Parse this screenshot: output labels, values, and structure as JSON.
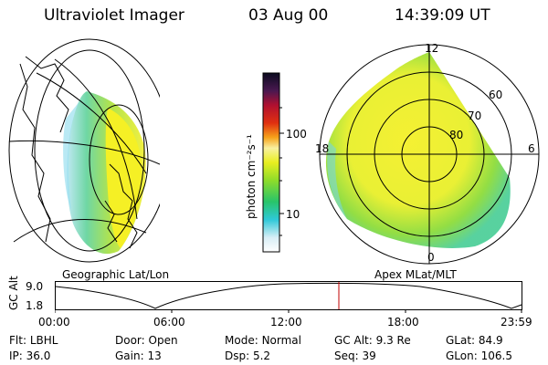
{
  "header": {
    "instrument": "Ultraviolet Imager",
    "date": "03 Aug 00",
    "time": "14:39:09 UT"
  },
  "colorbar": {
    "unit_label": "photon cm⁻²s⁻¹",
    "ticks": [
      "100",
      "10"
    ]
  },
  "map_labels": {
    "geo": "Geographic Lat/Lon",
    "apex": "Apex MLat/MLT"
  },
  "polar_labels": {
    "mlt": [
      "12",
      "18",
      "6",
      "0"
    ],
    "mlat": [
      "60",
      "70",
      "80"
    ]
  },
  "orbit": {
    "ylabel": "GC Alt",
    "yticks": [
      "9.0",
      "1.8"
    ],
    "xticks": [
      "00:00",
      "06:00",
      "12:00",
      "18:00",
      "23:59"
    ]
  },
  "info": {
    "row1": [
      {
        "label": "Flt:",
        "value": "LBHL"
      },
      {
        "label": "Door:",
        "value": "Open"
      },
      {
        "label": "Mode:",
        "value": "Normal"
      },
      {
        "label": "GC Alt:",
        "value": "9.3 Re"
      },
      {
        "label": "GLat:",
        "value": "84.9"
      }
    ],
    "row2": [
      {
        "label": "IP:",
        "value": "36.0"
      },
      {
        "label": "Gain:",
        "value": "13"
      },
      {
        "label": "Dsp:",
        "value": "5.2"
      },
      {
        "label": "Seq:",
        "value": "39"
      },
      {
        "label": "GLon:",
        "value": "106.5"
      }
    ]
  }
}
